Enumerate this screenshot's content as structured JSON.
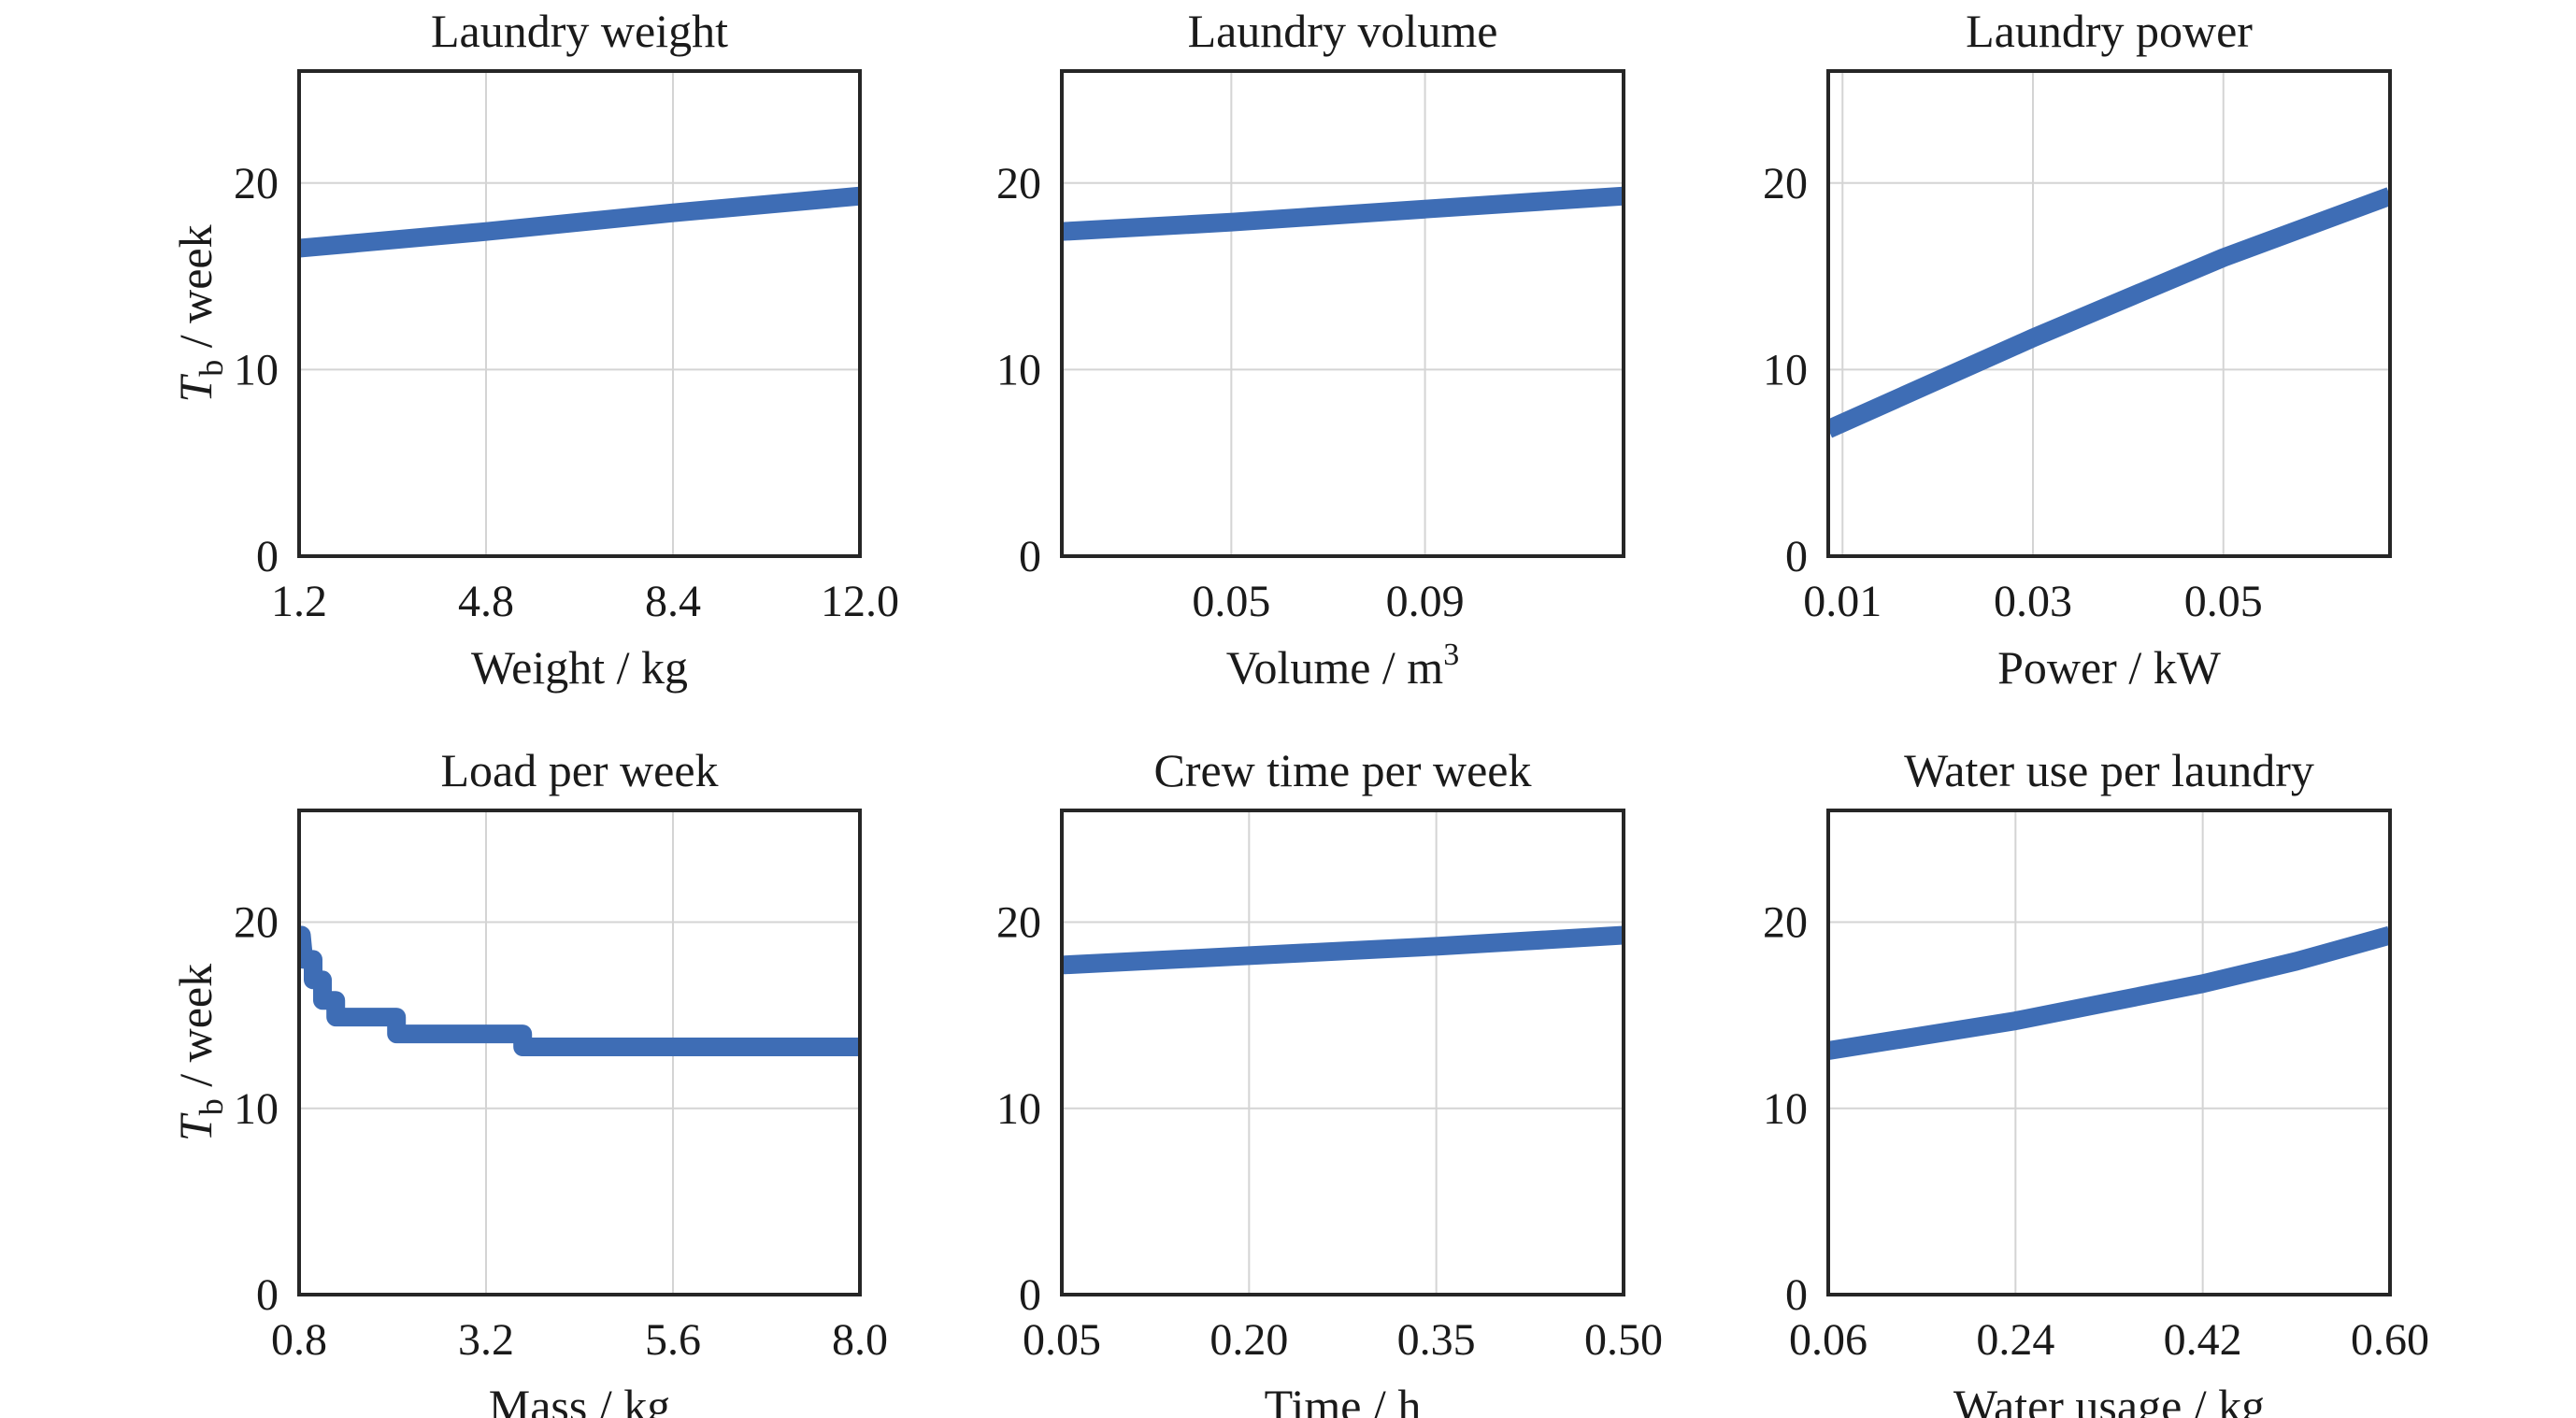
{
  "ylabel": {
    "var": "T",
    "sub": "b",
    "unit": " / week"
  },
  "colors": {
    "series": "#3e6db5",
    "frame": "#262626",
    "grid": "#d4d4d4"
  },
  "chart_data": [
    {
      "type": "line",
      "title": "Laundry weight",
      "xlabel": "Weight / kg",
      "xlim": [
        1.2,
        12.0
      ],
      "ylim": [
        0,
        26
      ],
      "xticks": [
        1.2,
        4.8,
        8.4,
        12.0
      ],
      "xtick_labels": [
        "1.2",
        "4.8",
        "8.4",
        "12.0"
      ],
      "yticks": [
        0,
        10,
        20
      ],
      "ytick_labels": [
        "0",
        "10",
        "20"
      ],
      "grid": true,
      "series": [
        {
          "x": [
            1.2,
            4.8,
            8.4,
            12.0
          ],
          "y": [
            16.5,
            17.4,
            18.4,
            19.3
          ]
        }
      ]
    },
    {
      "type": "line",
      "title": "Laundry volume",
      "xlabel": "Volume / m",
      "xlabel_sup": "3",
      "xlim": [
        0.015,
        0.131
      ],
      "ylim": [
        0,
        26
      ],
      "xticks": [
        0.05,
        0.09
      ],
      "xtick_labels": [
        "0.05",
        "0.09"
      ],
      "yticks": [
        0,
        10,
        20
      ],
      "ytick_labels": [
        "0",
        "10",
        "20"
      ],
      "grid": true,
      "series": [
        {
          "x": [
            0.015,
            0.05,
            0.09,
            0.131
          ],
          "y": [
            17.4,
            17.9,
            18.6,
            19.3
          ]
        }
      ]
    },
    {
      "type": "line",
      "title": "Laundry power",
      "xlabel": "Power / kW",
      "xlim": [
        0.0085,
        0.0675
      ],
      "ylim": [
        0,
        26
      ],
      "xticks": [
        0.01,
        0.03,
        0.05
      ],
      "xtick_labels": [
        "0.01",
        "0.03",
        "0.05"
      ],
      "yticks": [
        0,
        10,
        20
      ],
      "ytick_labels": [
        "0",
        "10",
        "20"
      ],
      "grid": true,
      "series": [
        {
          "x": [
            0.0085,
            0.03,
            0.05,
            0.0675
          ],
          "y": [
            6.8,
            11.7,
            16.0,
            19.3
          ]
        }
      ]
    },
    {
      "type": "line",
      "title": "Load per week",
      "xlabel": "Mass / kg",
      "xlim": [
        0.8,
        8.0
      ],
      "ylim": [
        0,
        26
      ],
      "xticks": [
        0.8,
        3.2,
        5.6,
        8.0
      ],
      "xtick_labels": [
        "0.8",
        "3.2",
        "5.6",
        "8.0"
      ],
      "yticks": [
        0,
        10,
        20
      ],
      "ytick_labels": [
        "0",
        "10",
        "20"
      ],
      "grid": true,
      "series": [
        {
          "x": [
            0.8,
            0.83,
            0.86,
            0.86,
            0.98,
            0.98,
            1.1,
            1.1,
            1.27,
            1.27,
            1.57,
            1.57,
            2.05,
            2.05,
            3.67,
            3.67,
            8.0
          ],
          "y": [
            19.3,
            19.3,
            18.0,
            18.0,
            18.0,
            16.9,
            16.9,
            15.8,
            15.8,
            14.9,
            14.9,
            14.9,
            14.9,
            14.0,
            14.0,
            13.3,
            13.3
          ]
        }
      ]
    },
    {
      "type": "line",
      "title": "Crew time per week",
      "xlabel": "Time / h",
      "xlim": [
        0.05,
        0.5
      ],
      "ylim": [
        0,
        26
      ],
      "xticks": [
        0.05,
        0.2,
        0.35,
        0.5
      ],
      "xtick_labels": [
        "0.05",
        "0.20",
        "0.35",
        "0.50"
      ],
      "yticks": [
        0,
        10,
        20
      ],
      "ytick_labels": [
        "0",
        "10",
        "20"
      ],
      "grid": true,
      "series": [
        {
          "x": [
            0.05,
            0.2,
            0.35,
            0.5
          ],
          "y": [
            17.7,
            18.2,
            18.7,
            19.3
          ]
        }
      ]
    },
    {
      "type": "line",
      "title": "Water use per laundry",
      "xlabel": "Water usage / kg",
      "xlim": [
        0.06,
        0.6
      ],
      "ylim": [
        0,
        26
      ],
      "xticks": [
        0.06,
        0.24,
        0.42,
        0.6
      ],
      "xtick_labels": [
        "0.06",
        "0.24",
        "0.42",
        "0.60"
      ],
      "yticks": [
        0,
        10,
        20
      ],
      "ytick_labels": [
        "0",
        "10",
        "20"
      ],
      "grid": true,
      "series": [
        {
          "x": [
            0.06,
            0.15,
            0.24,
            0.33,
            0.42,
            0.51,
            0.6
          ],
          "y": [
            13.1,
            13.9,
            14.7,
            15.7,
            16.7,
            17.9,
            19.3
          ]
        }
      ]
    }
  ]
}
